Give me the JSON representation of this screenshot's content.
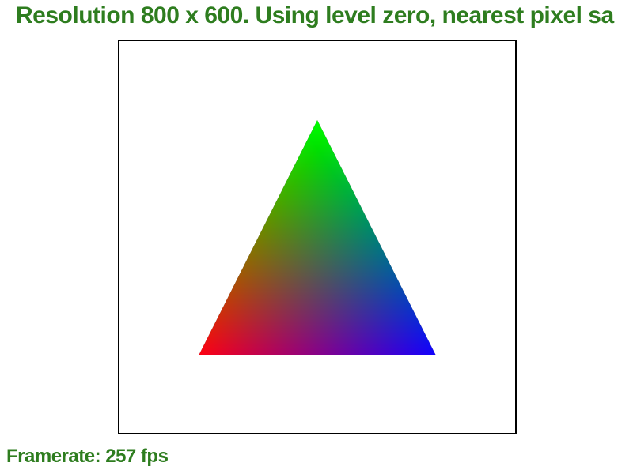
{
  "header": {
    "title": "Resolution 800 x 600. Using level zero, nearest pixel sa"
  },
  "status": {
    "framerate_label": "Framerate: 257 fps"
  },
  "scene": {
    "vertex_colors": {
      "top": "#00ff00",
      "bottom_left": "#ff0000",
      "bottom_right": "#0000ff"
    },
    "text_color": "#2e7d1f"
  }
}
